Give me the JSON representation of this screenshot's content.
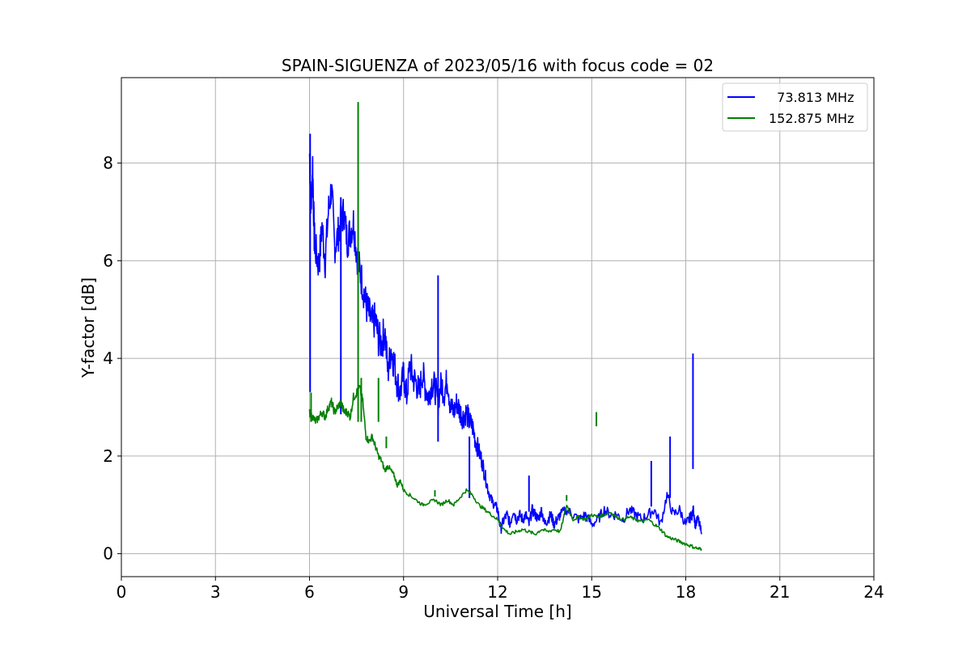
{
  "chart_data": {
    "type": "line",
    "title": "SPAIN-SIGUENZA of 2023/05/16 with focus code = 02",
    "xlabel": "Universal Time [h]",
    "ylabel": "Y-factor [dB]",
    "xlim": [
      0,
      24
    ],
    "ylim": [
      -0.47,
      9.75
    ],
    "xticks": [
      0,
      3,
      6,
      9,
      12,
      15,
      18,
      21,
      24
    ],
    "yticks": [
      0,
      2,
      4,
      6,
      8
    ],
    "grid": true,
    "legend_position": "top-right",
    "series": [
      {
        "name": "  73.813 MHz",
        "color": "#0000ff",
        "x": [
          6.0,
          6.05,
          6.1,
          6.15,
          6.2,
          6.3,
          6.4,
          6.5,
          6.6,
          6.7,
          6.8,
          6.9,
          7.0,
          7.1,
          7.2,
          7.3,
          7.4,
          7.5,
          7.6,
          7.7,
          7.8,
          7.9,
          8.0,
          8.1,
          8.2,
          8.3,
          8.4,
          8.5,
          8.6,
          8.7,
          8.8,
          8.9,
          9.0,
          9.1,
          9.2,
          9.3,
          9.4,
          9.5,
          9.6,
          9.7,
          9.8,
          9.9,
          10.0,
          10.1,
          10.2,
          10.3,
          10.4,
          10.5,
          10.6,
          10.7,
          10.8,
          10.9,
          11.0,
          11.1,
          11.2,
          11.3,
          11.4,
          11.5,
          11.6,
          11.7,
          11.8,
          11.9,
          12.0,
          12.1,
          12.2,
          12.3,
          12.4,
          12.5,
          12.6,
          12.7,
          12.8,
          12.9,
          13.0,
          13.1,
          13.2,
          13.3,
          13.4,
          13.5,
          13.6,
          13.7,
          13.8,
          13.9,
          14.0,
          14.2,
          14.4,
          14.6,
          14.8,
          15.0,
          15.2,
          15.4,
          15.6,
          15.8,
          16.0,
          16.2,
          16.4,
          16.6,
          16.8,
          17.0,
          17.2,
          17.4,
          17.6,
          17.8,
          18.0,
          18.1,
          18.2,
          18.25,
          18.3,
          18.4,
          18.5
        ],
        "y": [
          8.2,
          7.0,
          8.0,
          6.5,
          6.2,
          5.9,
          6.7,
          6.0,
          7.0,
          7.5,
          6.3,
          6.5,
          6.8,
          7.0,
          6.4,
          6.6,
          6.8,
          6.2,
          5.8,
          5.5,
          5.1,
          4.9,
          4.7,
          4.8,
          4.4,
          4.3,
          4.6,
          3.7,
          4.2,
          3.9,
          3.5,
          3.3,
          3.7,
          3.2,
          3.9,
          3.6,
          3.5,
          3.3,
          3.7,
          3.4,
          3.2,
          3.5,
          3.4,
          3.1,
          3.5,
          3.3,
          3.6,
          3.0,
          2.9,
          3.1,
          2.9,
          2.8,
          2.9,
          2.7,
          2.6,
          2.3,
          2.1,
          1.9,
          1.6,
          1.3,
          1.1,
          1.0,
          0.9,
          0.5,
          0.7,
          0.8,
          0.6,
          0.9,
          0.7,
          0.8,
          0.7,
          0.8,
          0.6,
          0.9,
          0.8,
          0.7,
          0.9,
          0.6,
          0.7,
          0.8,
          0.6,
          0.7,
          0.8,
          0.9,
          0.8,
          0.7,
          0.8,
          0.6,
          0.7,
          0.9,
          0.8,
          0.8,
          0.7,
          0.9,
          0.8,
          0.7,
          0.8,
          0.9,
          0.6,
          1.2,
          0.8,
          0.9,
          0.6,
          0.7,
          0.8,
          0.9,
          0.6,
          0.7,
          0.4
        ],
        "spikes": [
          [
            6.02,
            8.6
          ],
          [
            7.0,
            7.3
          ],
          [
            10.1,
            5.7
          ],
          [
            11.1,
            2.4
          ],
          [
            13.0,
            1.6
          ],
          [
            16.9,
            1.9
          ],
          [
            17.5,
            2.4
          ],
          [
            18.23,
            4.1
          ]
        ]
      },
      {
        "name": "152.875 MHz",
        "color": "#008000",
        "x": [
          6.0,
          6.1,
          6.2,
          6.3,
          6.4,
          6.5,
          6.6,
          6.7,
          6.8,
          6.9,
          7.0,
          7.1,
          7.2,
          7.3,
          7.4,
          7.5,
          7.6,
          7.7,
          7.8,
          7.9,
          8.0,
          8.1,
          8.2,
          8.3,
          8.4,
          8.5,
          8.6,
          8.7,
          8.8,
          8.9,
          9.0,
          9.2,
          9.4,
          9.6,
          9.8,
          10.0,
          10.2,
          10.4,
          10.6,
          10.8,
          11.0,
          11.2,
          11.4,
          11.6,
          11.8,
          12.0,
          12.2,
          12.4,
          12.6,
          12.8,
          13.0,
          13.2,
          13.4,
          13.6,
          13.8,
          14.0,
          14.2,
          14.4,
          14.6,
          14.8,
          15.0,
          15.2,
          15.4,
          15.6,
          15.8,
          16.0,
          16.2,
          16.4,
          16.6,
          16.8,
          17.0,
          17.2,
          17.4,
          17.6,
          17.8,
          18.0,
          18.2,
          18.4,
          18.5
        ],
        "y": [
          2.9,
          2.8,
          2.7,
          2.8,
          2.9,
          2.8,
          3.0,
          3.1,
          2.9,
          3.0,
          3.1,
          2.9,
          2.9,
          2.8,
          3.2,
          3.3,
          3.4,
          3.1,
          2.4,
          2.3,
          2.4,
          2.2,
          2.0,
          1.9,
          1.7,
          1.8,
          1.7,
          1.6,
          1.4,
          1.5,
          1.3,
          1.2,
          1.1,
          1.0,
          1.05,
          1.1,
          1.0,
          1.1,
          1.0,
          1.15,
          1.3,
          1.2,
          1.0,
          0.9,
          0.8,
          0.7,
          0.5,
          0.4,
          0.45,
          0.5,
          0.45,
          0.4,
          0.5,
          0.45,
          0.5,
          0.45,
          1.0,
          0.7,
          0.75,
          0.7,
          0.8,
          0.75,
          0.8,
          0.85,
          0.75,
          0.7,
          0.75,
          0.7,
          0.65,
          0.7,
          0.6,
          0.5,
          0.35,
          0.3,
          0.25,
          0.2,
          0.15,
          0.1,
          0.1
        ],
        "spikes": [
          [
            6.05,
            3.3
          ],
          [
            7.55,
            9.25
          ],
          [
            7.65,
            3.6
          ],
          [
            8.2,
            3.6
          ],
          [
            8.45,
            2.4
          ],
          [
            10.0,
            1.3
          ],
          [
            14.2,
            1.2
          ],
          [
            15.15,
            2.9
          ]
        ]
      }
    ]
  }
}
